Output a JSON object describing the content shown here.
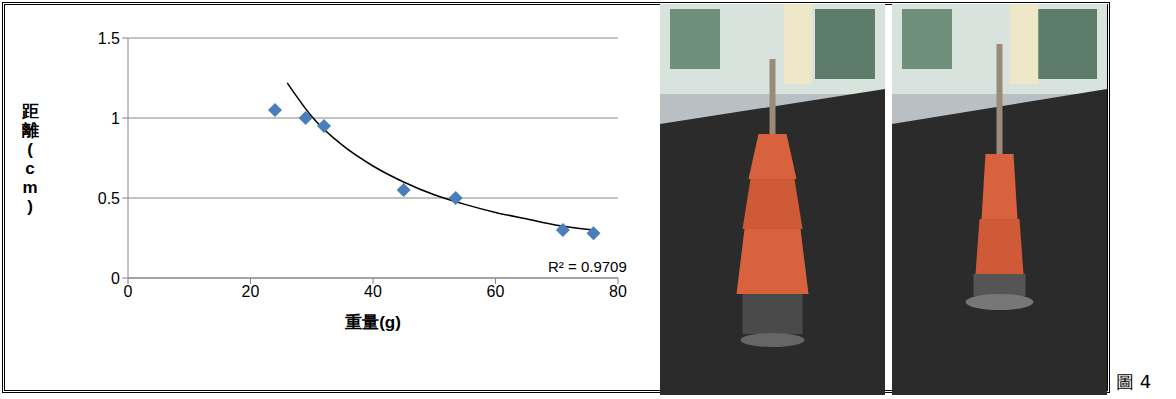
{
  "chart_data": {
    "type": "scatter",
    "x_label": "重量(g)",
    "y_label": "距離(cm)",
    "xlim": [
      0,
      80
    ],
    "xticks": [
      0,
      20,
      40,
      60,
      80
    ],
    "ylim": [
      0,
      1.5
    ],
    "yticks": [
      0,
      0.5,
      1,
      1.5
    ],
    "grid": true,
    "annotation": "R² = 0.9709",
    "series": [
      {
        "type": "scatter",
        "marker": "diamond",
        "color": "#4a7ebb",
        "x": [
          24,
          29,
          32,
          45,
          53.5,
          71,
          76
        ],
        "values": [
          1.05,
          1.0,
          0.95,
          0.55,
          0.5,
          0.3,
          0.28
        ]
      },
      {
        "type": "line",
        "line_style": "solid",
        "color": "#000000",
        "x": [
          26,
          30,
          35,
          40,
          45,
          50,
          55,
          60,
          65,
          70,
          76
        ],
        "values": [
          1.22,
          1.01,
          0.83,
          0.7,
          0.6,
          0.52,
          0.46,
          0.41,
          0.37,
          0.33,
          0.3
        ]
      }
    ]
  },
  "figure_label": "圖 4"
}
